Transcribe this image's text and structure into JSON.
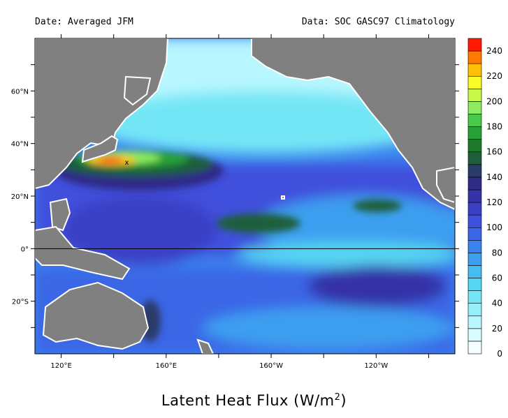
{
  "header": {
    "date_label": "Date: Averaged JFM",
    "data_label": "Data: SOC GASC97 Climatology"
  },
  "title": {
    "main": "Latent Heat Flux (W/m",
    "sup": "2",
    "close": ")"
  },
  "map": {
    "region": "Pacific Ocean",
    "lon_range": [
      110,
      270
    ],
    "lat_range": [
      -40,
      80
    ],
    "lat_ticks": [
      {
        "label": "60°N",
        "value": 60
      },
      {
        "label": "40°N",
        "value": 40
      },
      {
        "label": "20°N",
        "value": 20
      },
      {
        "label": "0°",
        "value": 0
      },
      {
        "label": "20°S",
        "value": -20
      }
    ],
    "lon_ticks": [
      {
        "label": "120°E",
        "value": 120
      },
      {
        "label": "160°E",
        "value": 160
      },
      {
        "label": "160°W",
        "value": 200
      },
      {
        "label": "120°W",
        "value": 240
      }
    ],
    "colors": {
      "land": "#808080",
      "coast": "#ffffff",
      "equator": "#000000"
    },
    "marker": {
      "symbol": "x",
      "lon": 145,
      "lat": 33
    }
  },
  "colorbar": {
    "labels": [
      "0",
      "20",
      "40",
      "60",
      "80",
      "100",
      "120",
      "140",
      "160",
      "180",
      "200",
      "220",
      "240"
    ],
    "levels": [
      0,
      10,
      20,
      30,
      40,
      50,
      60,
      70,
      80,
      90,
      100,
      110,
      120,
      130,
      140,
      150,
      160,
      170,
      180,
      190,
      200,
      210,
      220,
      230,
      240,
      250
    ],
    "colors": [
      "#f4feff",
      "#d8fcff",
      "#b8f7ff",
      "#96f0fb",
      "#73e6f6",
      "#56d6f2",
      "#45bdf0",
      "#3d9ff0",
      "#3a82ee",
      "#3a66e6",
      "#3f50dc",
      "#3b3fc6",
      "#3433a7",
      "#2f2c86",
      "#2a3b67",
      "#1f5e3a",
      "#1d7a2a",
      "#28a136",
      "#48c94a",
      "#8ceb60",
      "#c8f84a",
      "#fbfd2a",
      "#ffc107",
      "#ff7a00",
      "#ff1a00"
    ]
  }
}
